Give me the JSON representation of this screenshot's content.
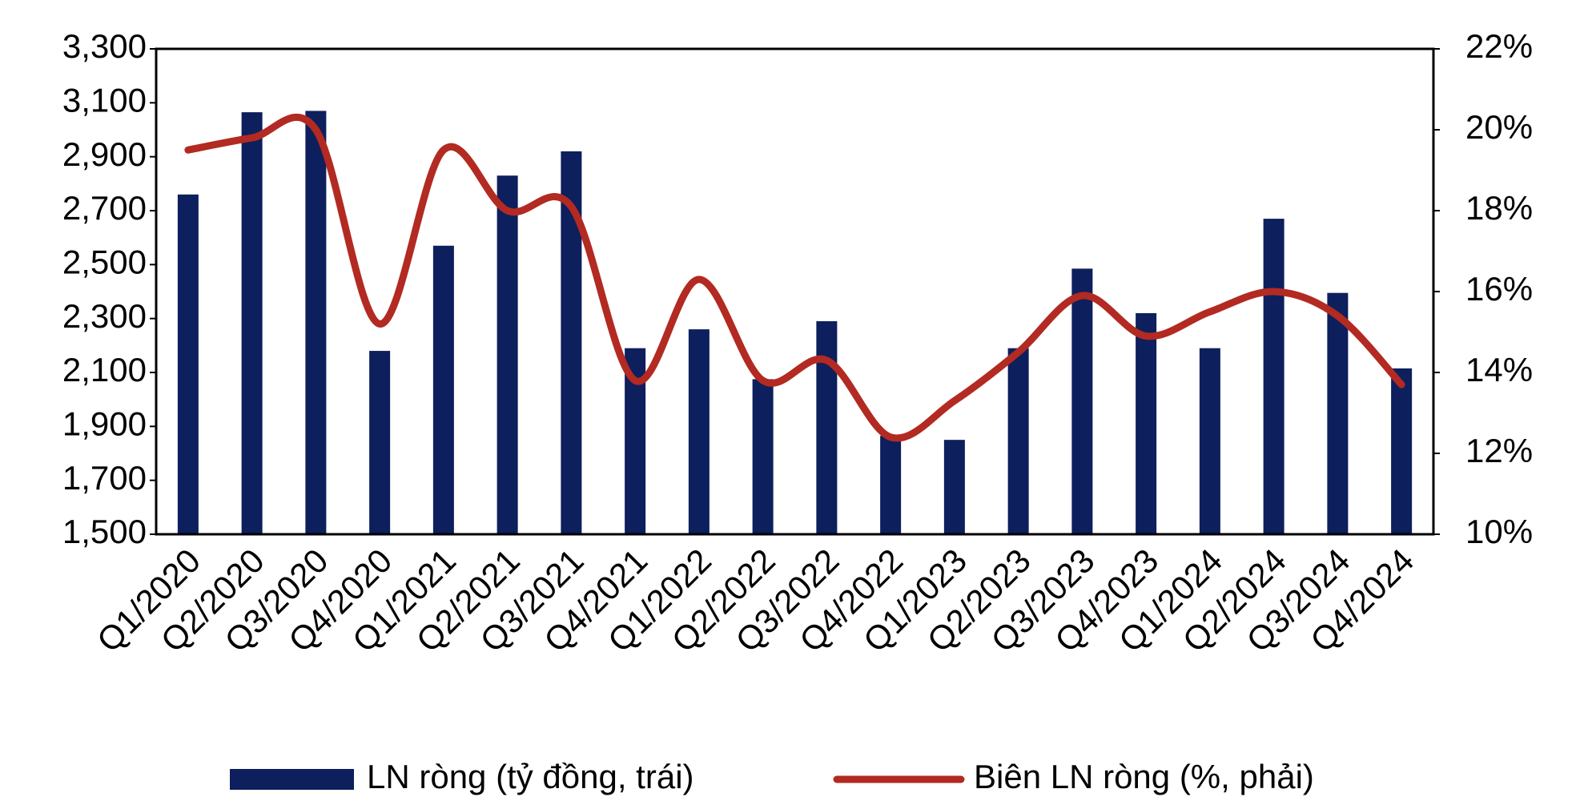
{
  "chart_data": {
    "type": "bar-line",
    "categories": [
      "Q1/2020",
      "Q2/2020",
      "Q3/2020",
      "Q4/2020",
      "Q1/2021",
      "Q2/2021",
      "Q3/2021",
      "Q4/2021",
      "Q1/2022",
      "Q2/2022",
      "Q3/2022",
      "Q4/2022",
      "Q1/2023",
      "Q2/2023",
      "Q3/2023",
      "Q4/2023",
      "Q1/2024",
      "Q2/2024",
      "Q3/2024",
      "Q4/2024"
    ],
    "series": [
      {
        "name": "LN ròng (tỷ đồng, trái)",
        "type": "bar",
        "color": "#0d1f5c",
        "values": [
          2760,
          3065,
          3070,
          2180,
          2570,
          2830,
          2920,
          2190,
          2260,
          2075,
          2290,
          1865,
          1850,
          2190,
          2485,
          2320,
          2190,
          2670,
          2395,
          2115
        ]
      },
      {
        "name": "Biên LN ròng (%, phải)",
        "type": "line",
        "axis": "y2",
        "color": "#b22a22",
        "values": [
          19.5,
          19.8,
          20.0,
          15.2,
          19.5,
          18.0,
          18.1,
          13.8,
          16.3,
          13.8,
          14.3,
          12.4,
          13.3,
          14.5,
          15.9,
          14.9,
          15.5,
          16.0,
          15.4,
          13.7
        ]
      }
    ],
    "ylim": [
      1500,
      3300
    ],
    "yticks": [
      {
        "value": 1500,
        "label": "1,500"
      },
      {
        "value": 1700,
        "label": "1,700"
      },
      {
        "value": 1900,
        "label": "1,900"
      },
      {
        "value": 2100,
        "label": "2,100"
      },
      {
        "value": 2300,
        "label": "2,300"
      },
      {
        "value": 2500,
        "label": "2,500"
      },
      {
        "value": 2700,
        "label": "2,700"
      },
      {
        "value": 2900,
        "label": "2,900"
      },
      {
        "value": 3100,
        "label": "3,100"
      },
      {
        "value": 3300,
        "label": "3,300"
      }
    ],
    "y2lim": [
      10,
      22
    ],
    "y2ticks": [
      {
        "value": 10,
        "label": "10%"
      },
      {
        "value": 12,
        "label": "12%"
      },
      {
        "value": 14,
        "label": "14%"
      },
      {
        "value": 16,
        "label": "16%"
      },
      {
        "value": 18,
        "label": "18%"
      },
      {
        "value": 20,
        "label": "20%"
      },
      {
        "value": 22,
        "label": "22%"
      }
    ],
    "legend": "bottom"
  }
}
